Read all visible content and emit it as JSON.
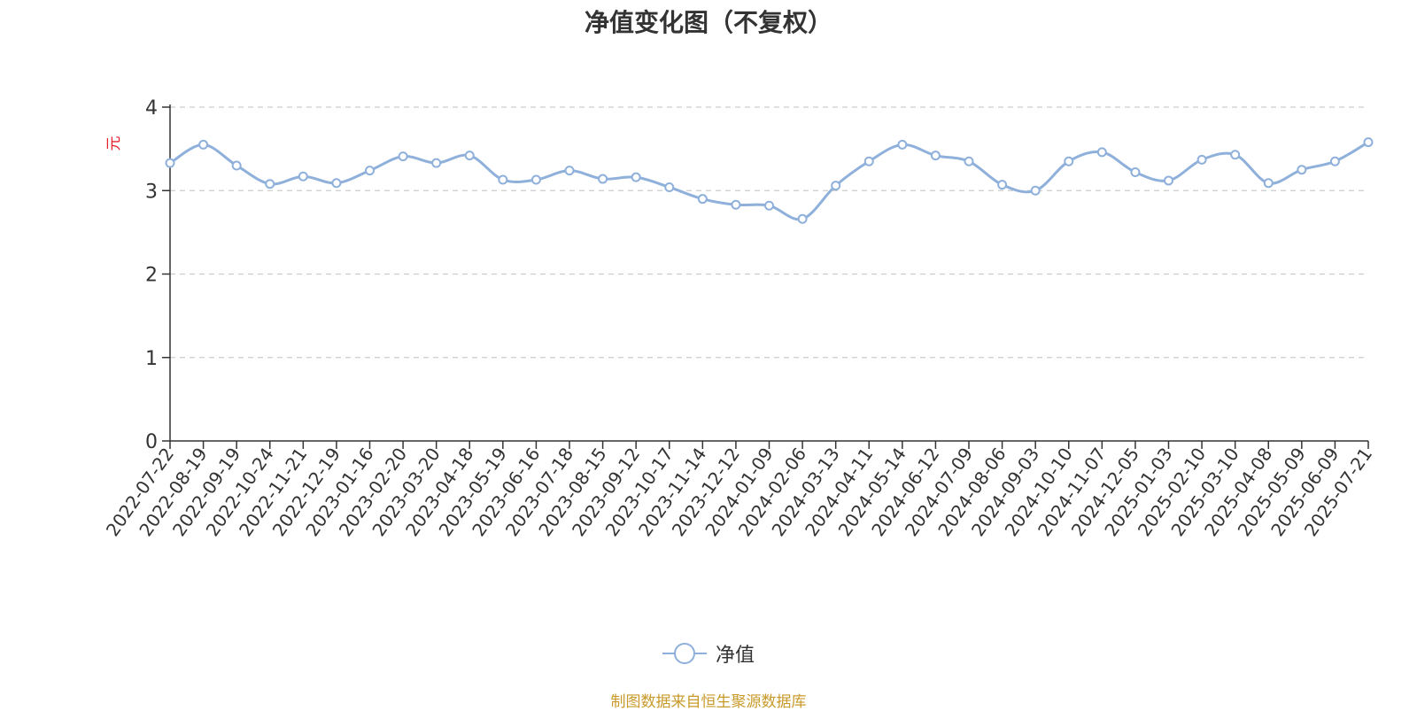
{
  "chart_data": {
    "type": "line",
    "title": "净值变化图（不复权）",
    "ylabel": "元",
    "ylim": [
      0,
      4
    ],
    "yticks": [
      0,
      1,
      2,
      3,
      4
    ],
    "grid": true,
    "legend_position": "bottom-center",
    "x_tick_labels": [
      "2022-07-22",
      "2022-08-19",
      "2022-09-19",
      "2022-10-24",
      "2022-11-21",
      "2022-12-19",
      "2023-01-16",
      "2023-02-20",
      "2023-03-20",
      "2023-04-18",
      "2023-05-19",
      "2023-06-16",
      "2023-07-18",
      "2023-08-15",
      "2023-09-12",
      "2023-10-17",
      "2023-11-14",
      "2023-12-12",
      "2024-01-09",
      "2024-02-06",
      "2024-03-13",
      "2024-04-11",
      "2024-05-14",
      "2024-06-12",
      "2024-07-09",
      "2024-08-06",
      "2024-09-03",
      "2024-10-10",
      "2024-11-07",
      "2024-12-05",
      "2025-01-03",
      "2025-02-10",
      "2025-03-10",
      "2025-04-08",
      "2025-05-09",
      "2025-06-09",
      "2025-07-21"
    ],
    "series": [
      {
        "name": "净值",
        "color": "#8eb0db",
        "values": [
          3.33,
          3.55,
          3.3,
          3.08,
          3.17,
          3.09,
          3.24,
          3.41,
          3.33,
          3.42,
          3.13,
          3.13,
          3.24,
          3.14,
          3.16,
          3.04,
          2.9,
          2.83,
          2.82,
          2.66,
          3.06,
          3.35,
          3.55,
          3.42,
          3.35,
          3.07,
          3.0,
          3.35,
          3.46,
          3.22,
          3.12,
          3.37,
          3.43,
          3.09,
          3.25,
          3.35,
          3.58
        ]
      }
    ]
  },
  "legend": {
    "label": "净值"
  },
  "footer": {
    "source": "制图数据来自恒生聚源数据库"
  }
}
